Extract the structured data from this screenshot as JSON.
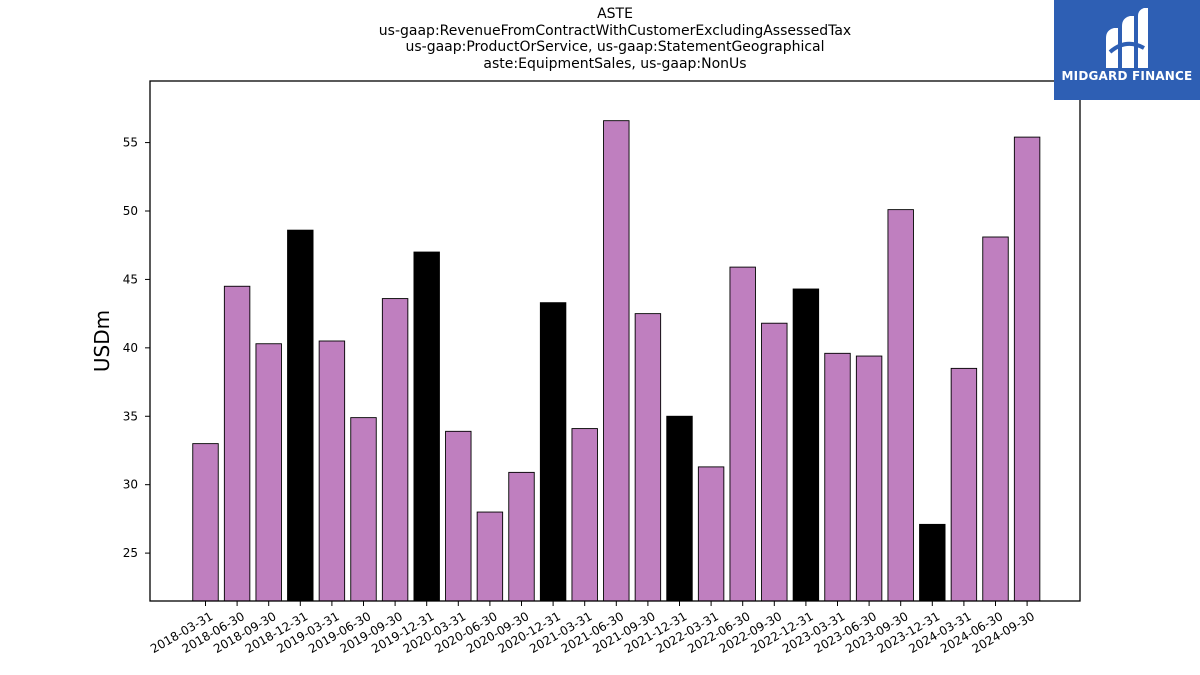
{
  "chart_data": {
    "type": "bar",
    "title_lines": [
      "ASTE",
      "us-gaap:RevenueFromContractWithCustomerExcludingAssessedTax",
      "us-gaap:ProductOrService, us-gaap:StatementGeographical",
      "aste:EquipmentSales, us-gaap:NonUs"
    ],
    "xlabel": "",
    "ylabel": "USDm",
    "ylim": [
      21.5,
      59.5
    ],
    "yticks": [
      25,
      30,
      35,
      40,
      45,
      50,
      55
    ],
    "grid": false,
    "categories": [
      "2018-03-31",
      "2018-06-30",
      "2018-09-30",
      "2018-12-31",
      "2019-03-31",
      "2019-06-30",
      "2019-09-30",
      "2019-12-31",
      "2020-03-31",
      "2020-06-30",
      "2020-09-30",
      "2020-12-31",
      "2021-03-31",
      "2021-06-30",
      "2021-09-30",
      "2021-12-31",
      "2022-03-31",
      "2022-06-30",
      "2022-09-30",
      "2022-12-31",
      "2023-03-31",
      "2023-06-30",
      "2023-09-30",
      "2023-12-31",
      "2024-03-31",
      "2024-06-30",
      "2024-09-30"
    ],
    "values": [
      33.0,
      44.5,
      40.3,
      48.6,
      40.5,
      34.9,
      43.6,
      47.0,
      33.9,
      28.0,
      30.9,
      43.3,
      34.1,
      56.6,
      42.5,
      35.0,
      31.3,
      45.9,
      41.8,
      44.3,
      39.6,
      39.4,
      50.1,
      27.1,
      38.5,
      48.1,
      55.4
    ],
    "colors": {
      "quarter": "#bf7fbf",
      "year_end": "#000000",
      "edge": "#000000"
    }
  },
  "logo": {
    "text": "MIDGARD FINANCE",
    "color": "#2e5fb4"
  }
}
